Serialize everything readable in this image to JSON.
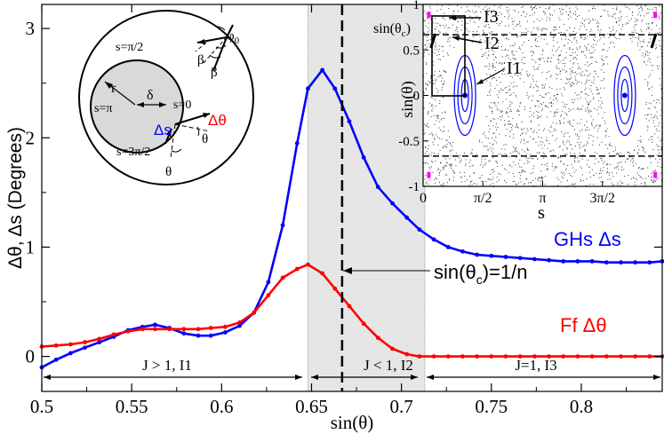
{
  "chart_data": [
    {
      "type": "line",
      "xlabel": "sin(θ)",
      "ylabel": "Δθ, Δs (Degrees)",
      "xlim": [
        0.5,
        0.845
      ],
      "ylim": [
        -0.32,
        3.22
      ],
      "x_ticks": [
        "0.5",
        "0.55",
        "0.6",
        "0.65",
        "0.7",
        "0.75",
        "0.8"
      ],
      "y_ticks": [
        "0",
        "1",
        "2",
        "3"
      ],
      "grid": false,
      "colors": {
        "ghs": "#0000ff",
        "ff": "#ff0000",
        "band": "#e6e6e6"
      },
      "series": [
        {
          "name": "GHs Δs",
          "color": "#0000ff",
          "x": [
            0.5,
            0.508,
            0.516,
            0.524,
            0.532,
            0.54,
            0.548,
            0.556,
            0.563,
            0.571,
            0.579,
            0.587,
            0.594,
            0.602,
            0.61,
            0.618,
            0.626,
            0.634,
            0.642,
            0.648,
            0.656,
            0.663,
            0.671,
            0.679,
            0.687,
            0.695,
            0.703,
            0.71,
            0.718,
            0.726,
            0.734,
            0.742,
            0.75,
            0.758,
            0.766,
            0.774,
            0.782,
            0.79,
            0.798,
            0.806,
            0.814,
            0.822,
            0.83,
            0.838,
            0.845
          ],
          "y": [
            -0.1,
            -0.03,
            0.03,
            0.08,
            0.13,
            0.18,
            0.24,
            0.27,
            0.29,
            0.26,
            0.21,
            0.19,
            0.19,
            0.22,
            0.28,
            0.4,
            0.68,
            1.2,
            1.95,
            2.45,
            2.62,
            2.45,
            2.15,
            1.82,
            1.55,
            1.4,
            1.27,
            1.16,
            1.07,
            1.0,
            0.96,
            0.93,
            0.92,
            0.91,
            0.9,
            0.89,
            0.88,
            0.87,
            0.87,
            0.87,
            0.86,
            0.86,
            0.86,
            0.86,
            0.87
          ]
        },
        {
          "name": "Ff Δθ",
          "color": "#ff0000",
          "x": [
            0.5,
            0.508,
            0.516,
            0.524,
            0.532,
            0.54,
            0.548,
            0.556,
            0.563,
            0.571,
            0.579,
            0.587,
            0.594,
            0.602,
            0.61,
            0.618,
            0.626,
            0.634,
            0.642,
            0.648,
            0.656,
            0.663,
            0.671,
            0.679,
            0.687,
            0.695,
            0.703,
            0.71,
            0.718,
            0.726,
            0.734,
            0.742,
            0.75,
            0.758,
            0.766,
            0.774,
            0.782,
            0.79,
            0.798,
            0.806,
            0.814,
            0.822,
            0.83,
            0.838,
            0.845
          ],
          "y": [
            0.09,
            0.1,
            0.11,
            0.13,
            0.16,
            0.2,
            0.23,
            0.25,
            0.25,
            0.25,
            0.25,
            0.25,
            0.26,
            0.27,
            0.31,
            0.4,
            0.56,
            0.72,
            0.8,
            0.84,
            0.76,
            0.62,
            0.46,
            0.3,
            0.17,
            0.07,
            0.02,
            0.0,
            0.0,
            0.0,
            0.0,
            0.0,
            0.0,
            0.0,
            0.0,
            0.0,
            0.0,
            0.0,
            0.0,
            0.0,
            0.0,
            0.0,
            0.0,
            0.0,
            0.0
          ]
        }
      ],
      "shaded_region": {
        "x": [
          0.648,
          0.713
        ]
      },
      "critical_line_x": 0.667,
      "critical_label": "sin(θc)=1/n",
      "regime_labels": [
        {
          "text": "J > 1,  I1",
          "x_from": 0.5,
          "x_to": 0.648
        },
        {
          "text": "J < 1,  I2",
          "x_from": 0.648,
          "x_to": 0.713
        },
        {
          "text": "J=1, I3",
          "x_from": 0.713,
          "x_to": 0.845
        }
      ]
    },
    {
      "type": "scatter",
      "xlabel": "s",
      "ylabel": "sin(θ)",
      "xlim": [
        0,
        6.2832
      ],
      "ylim": [
        -1,
        1
      ],
      "x_ticks": [
        "0",
        "π/2",
        "π",
        "3π/2"
      ],
      "y_ticks": [
        "1",
        "0.5",
        "0",
        "-0.5",
        "-1"
      ],
      "critical_y": 0.667,
      "critical_label": "sin(θc)",
      "annotations": [
        "I1",
        "I2",
        "I3"
      ],
      "islands": [
        {
          "center_s": 1.1,
          "center_y": 0.0
        },
        {
          "center_s": 5.3,
          "center_y": 0.0
        }
      ]
    }
  ],
  "schematic": {
    "labels": {
      "top": "s=π/2",
      "left": "s=π",
      "right": "s=0",
      "bottom": "s=3π/2",
      "r": "r",
      "delta": "δ",
      "delta_s": "Δs",
      "delta_theta": "Δθ",
      "theta_out": "θ",
      "theta_in": "θ",
      "beta1": "β",
      "beta2": "β",
      "phi": "φ",
      "phi_sub": "0"
    }
  },
  "legend": {
    "ghs": "GHs Δs",
    "ff": "Ff Δθ",
    "crit_text": "sin(θ",
    "crit_sub": "c",
    "crit_tail": ")=1/n"
  }
}
